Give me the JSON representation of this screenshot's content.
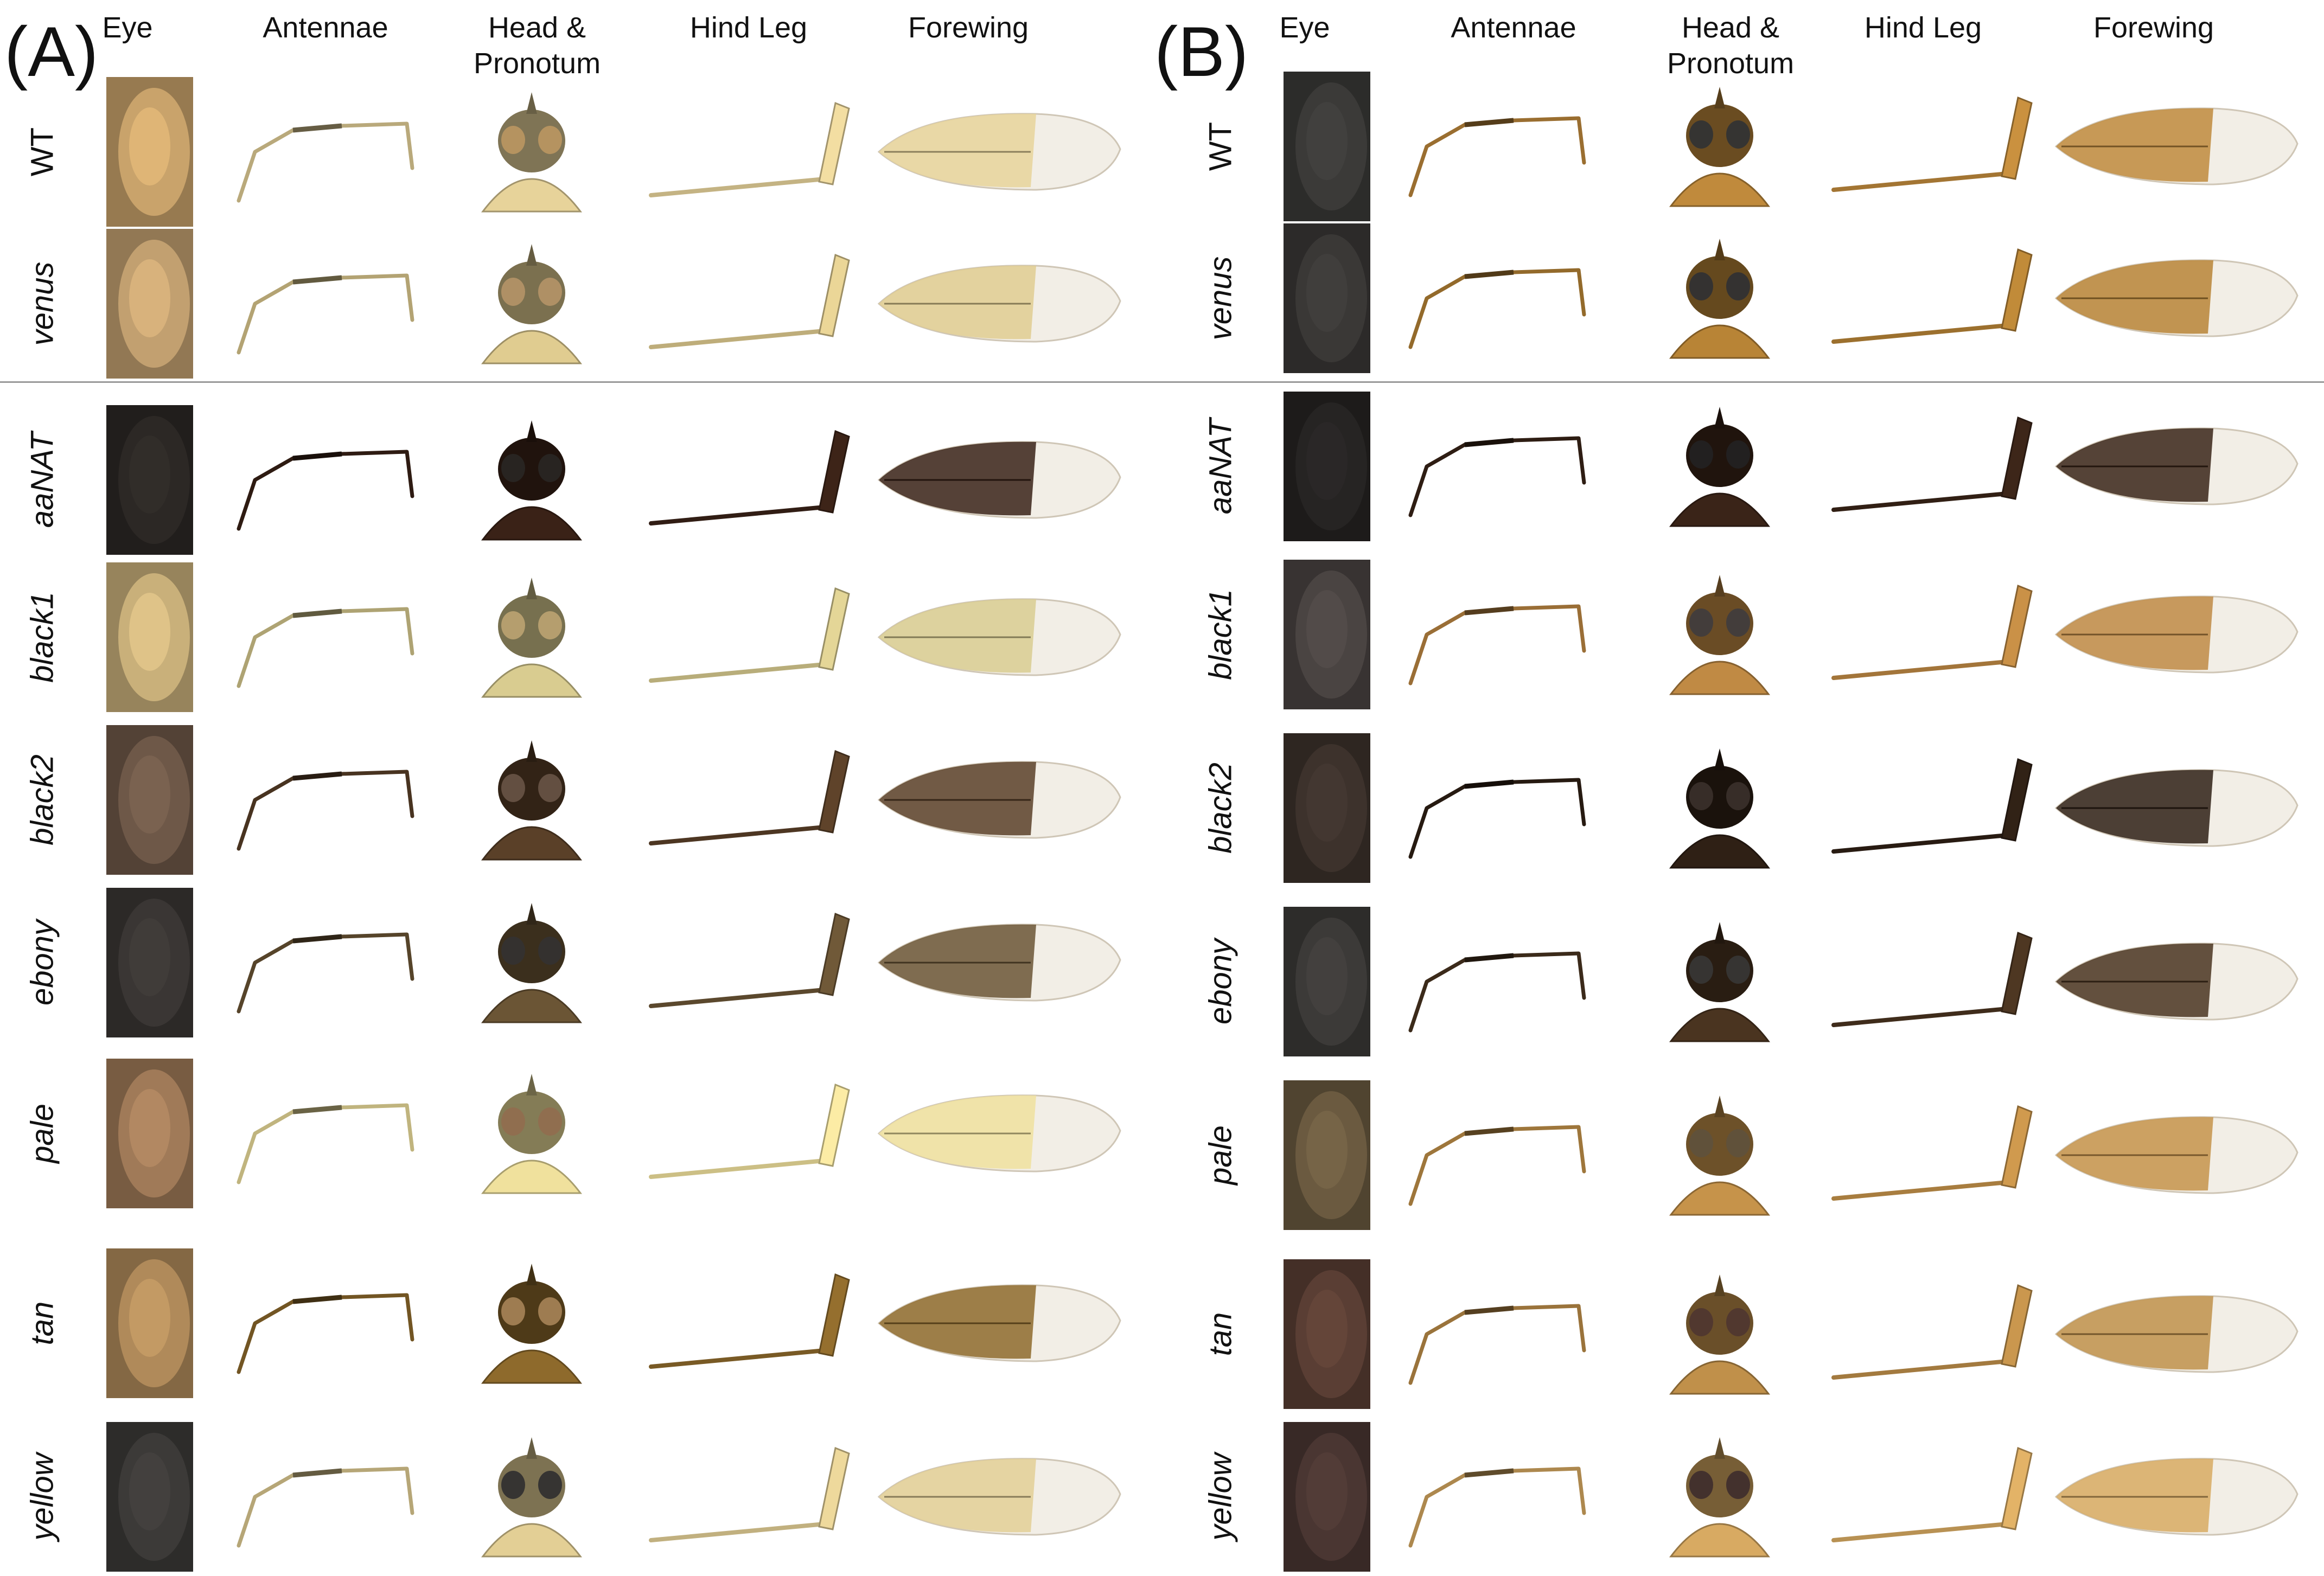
{
  "panels": [
    {
      "letter": "(A)",
      "columns": [
        "Eye",
        "Antennae",
        "Head &\nPronotum",
        "Hind Leg",
        "Forewing"
      ],
      "rows": [
        {
          "label": "WT",
          "italic": false
        },
        {
          "label": "venus",
          "italic": true
        },
        {
          "label": "aaNAT",
          "italic": true
        },
        {
          "label": "black1",
          "italic": true
        },
        {
          "label": "black2",
          "italic": true
        },
        {
          "label": "ebony",
          "italic": true
        },
        {
          "label": "pale",
          "italic": true
        },
        {
          "label": "tan",
          "italic": true
        },
        {
          "label": "yellow",
          "italic": true
        }
      ]
    },
    {
      "letter": "(B)",
      "columns": [
        "Eye",
        "Antennae",
        "Head &\nPronotum",
        "Hind Leg",
        "Forewing"
      ],
      "rows": [
        {
          "label": "WT",
          "italic": false
        },
        {
          "label": "venus",
          "italic": true
        },
        {
          "label": "aaNAT",
          "italic": true
        },
        {
          "label": "black1",
          "italic": true
        },
        {
          "label": "black2",
          "italic": true
        },
        {
          "label": "ebony",
          "italic": true
        },
        {
          "label": "pale",
          "italic": true
        },
        {
          "label": "tan",
          "italic": true
        },
        {
          "label": "yellow",
          "italic": true
        }
      ]
    }
  ],
  "specimen_colors": {
    "A": [
      "#c9a36b",
      "#c2a070",
      "#2c2825",
      "#c9b07a",
      "#6e5848",
      "#3a3634",
      "#a07a58",
      "#b08a5a",
      "#3c3a38"
    ],
    "B": [
      "#3b3a38",
      "#3a3836",
      "#262423",
      "#4a4442",
      "#3d322c",
      "#3c3a38",
      "#6b5a40",
      "#5a3e34",
      "#4a3632"
    ],
    "A_body": [
      "#e7d39a",
      "#e0cc90",
      "#3a2217",
      "#d9cc90",
      "#5a4028",
      "#6b5535",
      "#f0e19d",
      "#8e6a2c",
      "#e3cf95"
    ],
    "B_body": [
      "#c08a3c",
      "#b88436",
      "#3a2418",
      "#c08a44",
      "#2f2015",
      "#4a3420",
      "#c6934a",
      "#c0904a",
      "#d8aa62"
    ]
  }
}
